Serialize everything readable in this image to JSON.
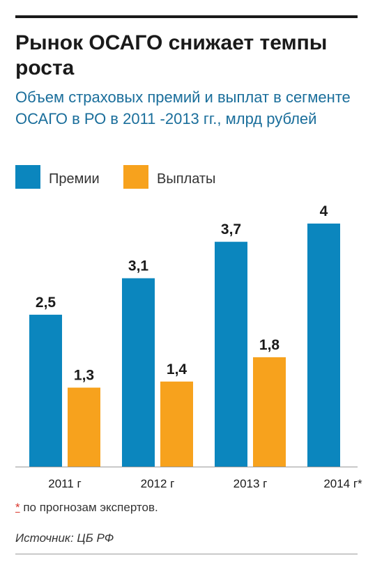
{
  "title": "Рынок ОСАГО снижает темпы роста",
  "subtitle": "Объем страховых премий и выплат в сегменте ОСАГО в РО в 2011 -2013 гг., млрд рублей",
  "legend": [
    {
      "label": "Премии",
      "color": "#0b86be"
    },
    {
      "label": "Выплаты",
      "color": "#f7a21d"
    }
  ],
  "chart_data": {
    "type": "bar",
    "title": "Рынок ОСАГО снижает темпы роста",
    "subtitle": "Объем страховых премий и выплат в сегменте ОСАГО в РО в 2011 -2013 гг., млрд рублей",
    "xlabel": "",
    "ylabel": "",
    "categories": [
      "2011 г",
      "2012 г",
      "2013 г",
      "2014 г*"
    ],
    "series": [
      {
        "name": "Премии",
        "color": "#0b86be",
        "values": [
          2.5,
          3.1,
          3.7,
          4
        ],
        "labels": [
          "2,5",
          "3,1",
          "3,7",
          "4"
        ]
      },
      {
        "name": "Выплаты",
        "color": "#f7a21d",
        "values": [
          1.3,
          1.4,
          1.8,
          null
        ],
        "labels": [
          "1,3",
          "1,4",
          "1,8",
          ""
        ]
      }
    ],
    "ylim": [
      0,
      4
    ],
    "grid": false,
    "legend_position": "top-left"
  },
  "footnote": {
    "marker": "*",
    "text": " по прогнозам экспертов."
  },
  "source": "Источник: ЦБ РФ"
}
